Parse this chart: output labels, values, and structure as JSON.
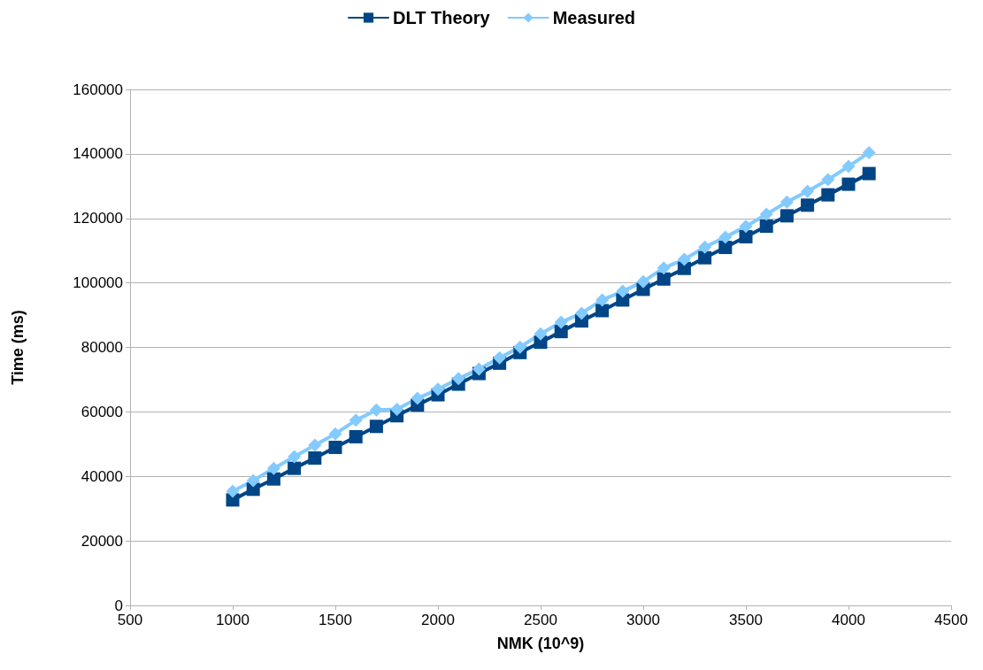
{
  "chart_data": {
    "type": "line",
    "xlabel": "NMK (10^9)",
    "ylabel": "Time (ms)",
    "x": [
      1000,
      1100,
      1200,
      1300,
      1400,
      1500,
      1600,
      1700,
      1800,
      1900,
      2000,
      2100,
      2200,
      2300,
      2400,
      2500,
      2600,
      2700,
      2800,
      2900,
      3000,
      3100,
      3200,
      3300,
      3400,
      3500,
      3600,
      3700,
      3800,
      3900,
      4000,
      4100
    ],
    "series": [
      {
        "name": "DLT Theory",
        "color": "#004586",
        "marker": "square",
        "values": [
          32700,
          36000,
          39200,
          42500,
          45700,
          49000,
          52300,
          55500,
          58800,
          62100,
          65300,
          68600,
          71900,
          75100,
          78400,
          81600,
          84900,
          88200,
          91400,
          94700,
          98000,
          101200,
          104500,
          107800,
          111000,
          114300,
          117600,
          120800,
          124100,
          127300,
          130600,
          133900
        ]
      },
      {
        "name": "Measured",
        "color": "#83caff",
        "marker": "diamond",
        "values": [
          35400,
          38700,
          42500,
          46100,
          49700,
          53200,
          57400,
          60600,
          60800,
          64200,
          67000,
          70300,
          73300,
          76800,
          80100,
          84200,
          87800,
          90600,
          94700,
          97400,
          100400,
          104600,
          107300,
          111100,
          114200,
          117500,
          121300,
          125100,
          128400,
          132000,
          136100,
          140400
        ]
      }
    ],
    "xlim": [
      500,
      4500
    ],
    "xticks": [
      500,
      1000,
      1500,
      2000,
      2500,
      3000,
      3500,
      4000,
      4500
    ],
    "ylim": [
      0,
      160000
    ],
    "yticks": [
      0,
      20000,
      40000,
      60000,
      80000,
      100000,
      120000,
      140000,
      160000
    ],
    "grid": "y",
    "legend": "top",
    "line_style": "solid"
  }
}
